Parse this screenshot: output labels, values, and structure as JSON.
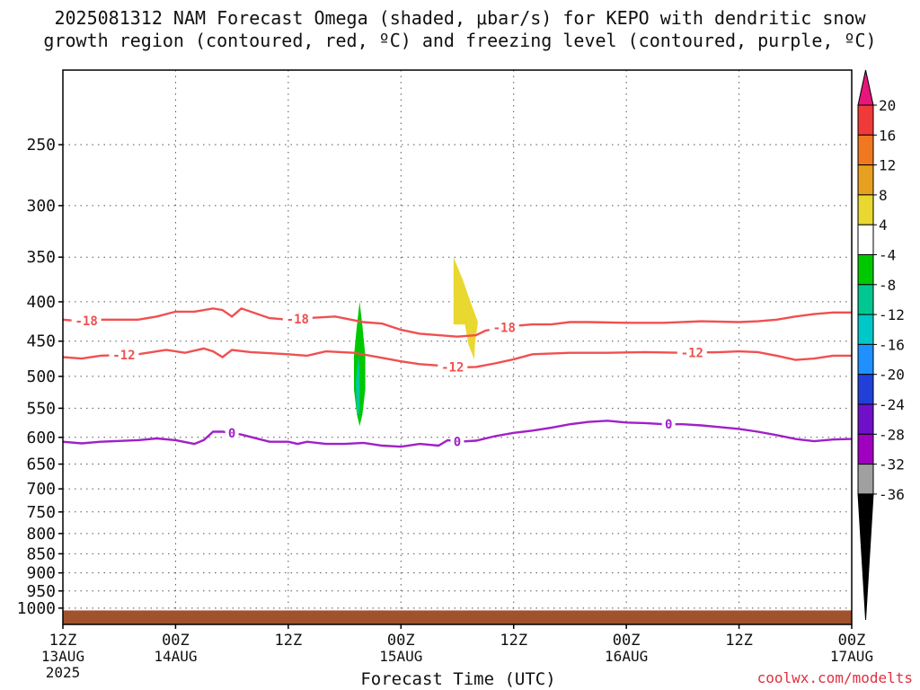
{
  "title_line1": "2025081312 NAM Forecast Omega (shaded, μbar/s) for KEPO with dendritic snow",
  "title_line2": "growth region (contoured, red, ºC) and freezing level (contoured, purple, ºC)",
  "credit": "coolwx.com/modelts",
  "chart_data": {
    "type": "time-height cross section",
    "xlabel": "Forecast Time (UTC)",
    "ylabel": "",
    "x_range_hours": [
      0,
      84
    ],
    "y_range_hPa": [
      200,
      1050
    ],
    "y_scale": "log-pressure (inverted)",
    "grid": true,
    "x_ticks": [
      {
        "hour": 0,
        "label": "12Z",
        "sub": "13AUG",
        "sub2": "2025"
      },
      {
        "hour": 12,
        "label": "00Z",
        "sub": "14AUG",
        "sub2": ""
      },
      {
        "hour": 24,
        "label": "12Z",
        "sub": "",
        "sub2": ""
      },
      {
        "hour": 36,
        "label": "00Z",
        "sub": "15AUG",
        "sub2": ""
      },
      {
        "hour": 48,
        "label": "12Z",
        "sub": "",
        "sub2": ""
      },
      {
        "hour": 60,
        "label": "00Z",
        "sub": "16AUG",
        "sub2": ""
      },
      {
        "hour": 72,
        "label": "12Z",
        "sub": "",
        "sub2": ""
      },
      {
        "hour": 84,
        "label": "00Z",
        "sub": "17AUG",
        "sub2": ""
      }
    ],
    "y_ticks": [
      250,
      300,
      350,
      400,
      450,
      500,
      550,
      600,
      650,
      700,
      750,
      800,
      850,
      900,
      950,
      1000
    ],
    "colorbar": {
      "levels": [
        20,
        16,
        12,
        8,
        4,
        -4,
        -8,
        -12,
        -16,
        -20,
        -24,
        -28,
        -32,
        -36
      ],
      "colors": [
        "#e8157a",
        "#f03a3a",
        "#f07820",
        "#e8a020",
        "#e8d830",
        "#ffffff",
        "#00c800",
        "#00c890",
        "#00c8c8",
        "#1e90ff",
        "#2040d8",
        "#7010c8",
        "#a000c0",
        "#a0a0a0",
        "#000000"
      ]
    },
    "contours": [
      {
        "label": "-18",
        "color": "#f05050",
        "points": [
          [
            0,
            422
          ],
          [
            2,
            424
          ],
          [
            4,
            422
          ],
          [
            8,
            422
          ],
          [
            10,
            418
          ],
          [
            12,
            412
          ],
          [
            14,
            412
          ],
          [
            16,
            408
          ],
          [
            17,
            410
          ],
          [
            18,
            418
          ],
          [
            19,
            408
          ],
          [
            22,
            420
          ],
          [
            24,
            422
          ],
          [
            26,
            420
          ],
          [
            29,
            418
          ],
          [
            32,
            425
          ],
          [
            34,
            427
          ],
          [
            36,
            435
          ],
          [
            38,
            440
          ],
          [
            40,
            442
          ],
          [
            42,
            444
          ],
          [
            44,
            442
          ],
          [
            45,
            436
          ],
          [
            46,
            434
          ],
          [
            47,
            432
          ],
          [
            48,
            430
          ],
          [
            50,
            428
          ],
          [
            52,
            428
          ],
          [
            54,
            425
          ],
          [
            56,
            425
          ],
          [
            60,
            426
          ],
          [
            64,
            426
          ],
          [
            68,
            424
          ],
          [
            72,
            425
          ],
          [
            74,
            424
          ],
          [
            76,
            422
          ],
          [
            78,
            418
          ],
          [
            80,
            415
          ],
          [
            82,
            413
          ],
          [
            84,
            413
          ]
        ],
        "label_hours": [
          2.5,
          25,
          47
        ]
      },
      {
        "label": "-12",
        "color": "#f05050",
        "points": [
          [
            0,
            472
          ],
          [
            2,
            474
          ],
          [
            4,
            470
          ],
          [
            8,
            468
          ],
          [
            11,
            462
          ],
          [
            13,
            466
          ],
          [
            15,
            460
          ],
          [
            16,
            464
          ],
          [
            17,
            472
          ],
          [
            18,
            462
          ],
          [
            20,
            465
          ],
          [
            24,
            468
          ],
          [
            26,
            470
          ],
          [
            28,
            464
          ],
          [
            31,
            466
          ],
          [
            34,
            473
          ],
          [
            36,
            478
          ],
          [
            38,
            482
          ],
          [
            40,
            484
          ],
          [
            42,
            487
          ],
          [
            44,
            486
          ],
          [
            46,
            481
          ],
          [
            48,
            475
          ],
          [
            50,
            468
          ],
          [
            54,
            466
          ],
          [
            58,
            466
          ],
          [
            62,
            465
          ],
          [
            66,
            466
          ],
          [
            70,
            465
          ],
          [
            72,
            464
          ],
          [
            74,
            465
          ],
          [
            76,
            470
          ],
          [
            78,
            476
          ],
          [
            80,
            474
          ],
          [
            82,
            470
          ],
          [
            84,
            470
          ]
        ],
        "label_hours": [
          6.5,
          41.5,
          67
        ]
      },
      {
        "label": "0",
        "color": "#a020c8",
        "points": [
          [
            0,
            608
          ],
          [
            2,
            611
          ],
          [
            4,
            608
          ],
          [
            8,
            605
          ],
          [
            10,
            602
          ],
          [
            12,
            605
          ],
          [
            14,
            612
          ],
          [
            15,
            605
          ],
          [
            16,
            590
          ],
          [
            17,
            590
          ],
          [
            19,
            595
          ],
          [
            22,
            608
          ],
          [
            24,
            608
          ],
          [
            25,
            612
          ],
          [
            26,
            608
          ],
          [
            28,
            612
          ],
          [
            30,
            612
          ],
          [
            32,
            610
          ],
          [
            34,
            615
          ],
          [
            36,
            617
          ],
          [
            38,
            612
          ],
          [
            40,
            615
          ],
          [
            41,
            605
          ],
          [
            42,
            608
          ],
          [
            44,
            606
          ],
          [
            46,
            598
          ],
          [
            48,
            592
          ],
          [
            50,
            588
          ],
          [
            52,
            583
          ],
          [
            54,
            577
          ],
          [
            56,
            573
          ],
          [
            58,
            571
          ],
          [
            60,
            574
          ],
          [
            62,
            575
          ],
          [
            64,
            577
          ],
          [
            66,
            577
          ],
          [
            68,
            579
          ],
          [
            70,
            582
          ],
          [
            72,
            585
          ],
          [
            74,
            590
          ],
          [
            76,
            596
          ],
          [
            78,
            603
          ],
          [
            80,
            607
          ],
          [
            82,
            604
          ],
          [
            84,
            603
          ]
        ],
        "label_hours": [
          18,
          42,
          64.5
        ]
      }
    ],
    "shaded_regions": [
      {
        "value": -8,
        "color": "#00c800",
        "polygon": [
          [
            31.6,
            580
          ],
          [
            31.3,
            560
          ],
          [
            31.0,
            520
          ],
          [
            31.0,
            470
          ],
          [
            31.3,
            430
          ],
          [
            31.6,
            400
          ],
          [
            31.9,
            430
          ],
          [
            32.2,
            470
          ],
          [
            32.2,
            520
          ],
          [
            31.9,
            560
          ]
        ]
      },
      {
        "value": -12,
        "color": "#00c8a8",
        "polygon": [
          [
            31.3,
            560
          ],
          [
            31.2,
            510
          ],
          [
            31.4,
            480
          ],
          [
            31.5,
            470
          ],
          [
            31.6,
            500
          ],
          [
            31.6,
            545
          ],
          [
            31.5,
            560
          ]
        ]
      },
      {
        "value": 4,
        "color": "#e8d830",
        "polygon": [
          [
            41.6,
            350
          ],
          [
            42.6,
            375
          ],
          [
            43.4,
            400
          ],
          [
            44.2,
            425
          ],
          [
            43.9,
            450
          ],
          [
            43.8,
            475
          ],
          [
            43.2,
            455
          ],
          [
            42.8,
            428
          ],
          [
            41.6,
            428
          ]
        ]
      }
    ],
    "terrain": {
      "color": "#a0522d",
      "top_hPa": 1007
    }
  }
}
